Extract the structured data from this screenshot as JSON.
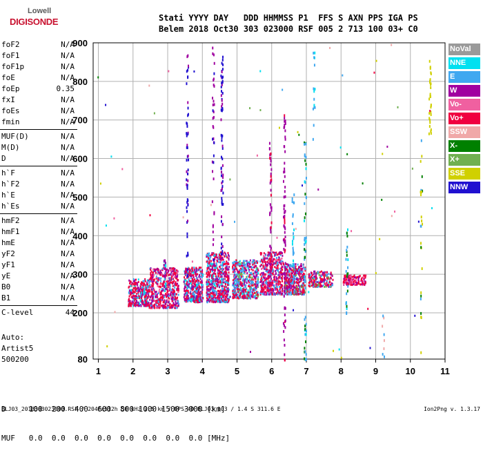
{
  "logo": {
    "top": "Lowell",
    "bottom": "DIGISONDE"
  },
  "header": {
    "line1": "Stati YYYY DAY   DDD HHMMSS P1  FFS S AXN PPS IGA PS",
    "line2": "Belem 2018 Oct30 303 023000 RSF 005 2 713 100 03+ C0"
  },
  "params": [
    {
      "group": [
        {
          "name": "foF2",
          "value": "N/A"
        },
        {
          "name": "foF1",
          "value": "N/A"
        },
        {
          "name": "foF1p",
          "value": "N/A"
        },
        {
          "name": "foE",
          "value": "N/A"
        },
        {
          "name": "foEp",
          "value": "0.35"
        },
        {
          "name": "fxI",
          "value": "N/A"
        },
        {
          "name": "foEs",
          "value": "N/A"
        },
        {
          "name": "fmin",
          "value": "N/A"
        }
      ]
    },
    {
      "group": [
        {
          "name": "MUF(D)",
          "value": "N/A"
        },
        {
          "name": "M(D)",
          "value": "N/A"
        },
        {
          "name": "D",
          "value": "N/A"
        }
      ]
    },
    {
      "group": [
        {
          "name": "h`F",
          "value": "N/A"
        },
        {
          "name": "h`F2",
          "value": "N/A"
        },
        {
          "name": "h`E",
          "value": "N/A"
        },
        {
          "name": "h`Es",
          "value": "N/A"
        }
      ]
    },
    {
      "group": [
        {
          "name": "hmF2",
          "value": "N/A"
        },
        {
          "name": "hmF1",
          "value": "N/A"
        },
        {
          "name": "hmE",
          "value": "N/A"
        },
        {
          "name": "yF2",
          "value": "N/A"
        },
        {
          "name": "yF1",
          "value": "N/A"
        },
        {
          "name": "yE",
          "value": "N/A"
        },
        {
          "name": "B0",
          "value": "N/A"
        },
        {
          "name": "B1",
          "value": "N/A"
        }
      ]
    },
    {
      "group": [
        {
          "name": "C-level",
          "value": "44"
        }
      ]
    }
  ],
  "auto": [
    "Auto:",
    "Artist5",
    "500200"
  ],
  "legend": [
    {
      "label": "NoVal",
      "color": "#9a9a9a"
    },
    {
      "label": "NNE",
      "color": "#00e0f0"
    },
    {
      "label": "E",
      "color": "#40a8f0"
    },
    {
      "label": "W",
      "color": "#a000a0"
    },
    {
      "label": "Vo-",
      "color": "#f060a0"
    },
    {
      "label": "Vo+",
      "color": "#f00040"
    },
    {
      "label": "SSW",
      "color": "#f0a8a8"
    },
    {
      "label": "X-",
      "color": "#008000"
    },
    {
      "label": "X+",
      "color": "#70b050"
    },
    {
      "label": "SSE",
      "color": "#d0d000"
    },
    {
      "label": "NNW",
      "color": "#2010d0"
    }
  ],
  "chart_data": {
    "type": "scatter",
    "xlim": [
      0.85,
      11
    ],
    "ylim": [
      80,
      900
    ],
    "xticks": [
      "1",
      "2",
      "3",
      "4",
      "5",
      "6",
      "7",
      "8",
      "9",
      "10",
      "11"
    ],
    "yticks": [
      "80",
      "200",
      "300",
      "400",
      "500",
      "600",
      "700",
      "800",
      "900"
    ],
    "grid": true,
    "clusters": [
      {
        "f": [
          1.85,
          2.45
        ],
        "h": [
          220,
          290
        ],
        "n": 55,
        "mix": {
          "Vo+": 0.5,
          "W": 0.25,
          "E": 0.15,
          "NNE": 0.1
        }
      },
      {
        "f": [
          2.45,
          3.3
        ],
        "h": [
          215,
          320
        ],
        "n": 90,
        "mix": {
          "Vo+": 0.45,
          "W": 0.3,
          "E": 0.15,
          "Vo-": 0.1
        }
      },
      {
        "f": [
          3.45,
          4.0
        ],
        "h": [
          230,
          320
        ],
        "n": 70,
        "mix": {
          "Vo+": 0.4,
          "W": 0.3,
          "E": 0.2,
          "NNE": 0.1
        }
      },
      {
        "f": [
          4.1,
          4.75
        ],
        "h": [
          230,
          360
        ],
        "n": 100,
        "mix": {
          "Vo+": 0.4,
          "E": 0.25,
          "W": 0.25,
          "NNE": 0.1
        }
      },
      {
        "f": [
          4.85,
          5.6
        ],
        "h": [
          240,
          340
        ],
        "n": 90,
        "mix": {
          "E": 0.35,
          "Vo+": 0.3,
          "W": 0.2,
          "X+": 0.1,
          "NNE": 0.05
        }
      },
      {
        "f": [
          5.65,
          6.3
        ],
        "h": [
          250,
          360
        ],
        "n": 80,
        "mix": {
          "Vo+": 0.4,
          "W": 0.3,
          "E": 0.2,
          "Vo-": 0.1
        }
      },
      {
        "f": [
          6.35,
          6.95
        ],
        "h": [
          250,
          330
        ],
        "n": 70,
        "mix": {
          "Vo+": 0.35,
          "W": 0.3,
          "E": 0.25,
          "X+": 0.1
        }
      },
      {
        "f": [
          7.05,
          7.75
        ],
        "h": [
          270,
          310
        ],
        "n": 35,
        "mix": {
          "Vo+": 0.5,
          "W": 0.2,
          "E": 0.2,
          "X+": 0.1
        }
      },
      {
        "f": [
          8.05,
          8.7
        ],
        "h": [
          275,
          300
        ],
        "n": 25,
        "mix": {
          "Vo+": 0.5,
          "W": 0.3,
          "Vo-": 0.2
        }
      }
    ],
    "columns": [
      {
        "f": 3.55,
        "h": [
          270,
          900
        ],
        "n": 55,
        "mix": {
          "NNW": 0.6,
          "W": 0.4
        }
      },
      {
        "f": 4.55,
        "h": [
          350,
          880
        ],
        "n": 70,
        "mix": {
          "NNW": 0.7,
          "W": 0.3
        }
      },
      {
        "f": 4.3,
        "h": [
          310,
          900
        ],
        "n": 40,
        "mix": {
          "W": 0.7,
          "NNW": 0.3
        }
      },
      {
        "f": 5.95,
        "h": [
          300,
          650
        ],
        "n": 50,
        "mix": {
          "W": 0.7,
          "Vo+": 0.3
        }
      },
      {
        "f": 6.35,
        "h": [
          80,
          720
        ],
        "n": 80,
        "mix": {
          "W": 0.8,
          "Vo+": 0.2
        }
      },
      {
        "f": 6.6,
        "h": [
          250,
          520
        ],
        "n": 30,
        "mix": {
          "E": 0.7,
          "NNE": 0.3
        }
      },
      {
        "f": 6.95,
        "h": [
          80,
          650
        ],
        "n": 55,
        "mix": {
          "E": 0.5,
          "X-": 0.3,
          "NNE": 0.2
        }
      },
      {
        "f": 7.2,
        "h": [
          650,
          880
        ],
        "n": 15,
        "mix": {
          "E": 0.7,
          "NNE": 0.3
        }
      },
      {
        "f": 8.15,
        "h": [
          200,
          420
        ],
        "n": 25,
        "mix": {
          "E": 0.5,
          "X-": 0.3,
          "NNE": 0.2
        }
      },
      {
        "f": 10.55,
        "h": [
          650,
          880
        ],
        "n": 30,
        "mix": {
          "SSE": 1
        }
      },
      {
        "f": 10.3,
        "h": [
          80,
          720
        ],
        "n": 25,
        "mix": {
          "SSE": 0.5,
          "X-": 0.3,
          "E": 0.2
        }
      },
      {
        "f": 9.2,
        "h": [
          80,
          200
        ],
        "n": 8,
        "mix": {
          "SSW": 0.6,
          "E": 0.4
        }
      },
      {
        "f": 2.9,
        "h": [
          260,
          340
        ],
        "n": 20,
        "mix": {
          "W": 0.6,
          "NNE": 0.4
        }
      }
    ],
    "scatter_count": 70
  },
  "dmuf": {
    "d_line": "D     100  200  400  600  800 1000 1500 3000 [km]",
    "muf_line": "MUF   0.0  0.0  0.0  0.0  0.0  0.0  0.0  0.0 [MHz]"
  },
  "footer": "BLJ03_2018303023000.RSF / 204fx512h 50 kHz 2.5 km / DPS-4D BLJ03 103 / 1.4 S 311.6 E",
  "version": "Ion2Png v. 1.3.17"
}
